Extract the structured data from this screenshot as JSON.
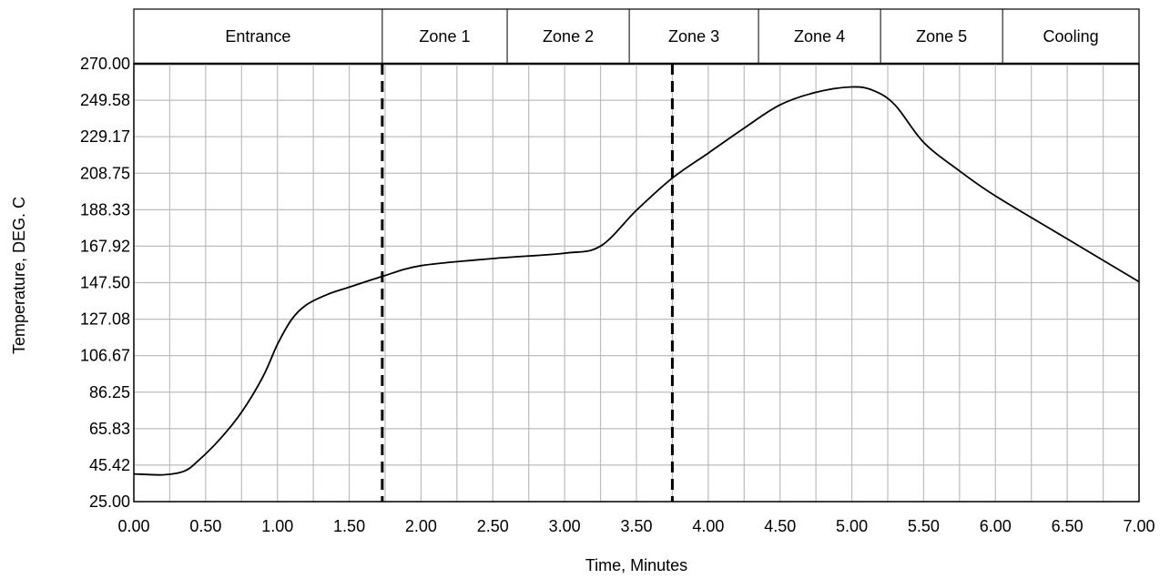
{
  "chart_data": {
    "type": "line",
    "xlabel": "Time, Minutes",
    "ylabel": "Temperature, DEG. C",
    "xlim": [
      0,
      7
    ],
    "ylim": [
      25,
      270
    ],
    "grid": true,
    "x_ticks": [
      "0.00",
      "0.50",
      "1.00",
      "1.50",
      "2.00",
      "2.50",
      "3.00",
      "3.50",
      "4.00",
      "4.50",
      "5.00",
      "5.50",
      "6.00",
      "6.50",
      "7.00"
    ],
    "y_ticks": [
      "270.00",
      "249.58",
      "229.17",
      "208.75",
      "188.33",
      "167.92",
      "147.50",
      "127.08",
      "106.67",
      "86.25",
      "65.83",
      "45.42",
      "25.00"
    ],
    "zones": [
      {
        "label": "Entrance",
        "start": 0.0,
        "end": 1.73
      },
      {
        "label": "Zone 1",
        "start": 1.73,
        "end": 2.6
      },
      {
        "label": "Zone 2",
        "start": 2.6,
        "end": 3.45
      },
      {
        "label": "Zone 3",
        "start": 3.45,
        "end": 4.35
      },
      {
        "label": "Zone 4",
        "start": 4.35,
        "end": 5.2
      },
      {
        "label": "Zone 5",
        "start": 5.2,
        "end": 6.05
      },
      {
        "label": "Cooling",
        "start": 6.05,
        "end": 7.0
      }
    ],
    "dashed_lines_x": [
      1.73,
      3.75
    ],
    "series": [
      {
        "x": [
          0.0,
          0.2,
          0.35,
          0.45,
          0.6,
          0.75,
          0.9,
          1.0,
          1.1,
          1.2,
          1.35,
          1.5,
          1.73,
          2.0,
          2.5,
          3.0,
          3.25,
          3.5,
          3.75,
          4.0,
          4.25,
          4.5,
          4.75,
          5.0,
          5.15,
          5.3,
          5.5,
          5.75,
          6.0,
          6.5,
          7.0
        ],
        "y": [
          40.5,
          40.0,
          42.0,
          48.0,
          60.0,
          75.0,
          95.0,
          113.0,
          127.0,
          135.0,
          141.0,
          145.0,
          151.0,
          157.0,
          161.0,
          164.0,
          168.0,
          188.0,
          206.0,
          220.0,
          234.0,
          247.0,
          254.0,
          257.0,
          255.0,
          247.0,
          226.0,
          210.0,
          196.0,
          172.0,
          148.0
        ]
      }
    ]
  }
}
